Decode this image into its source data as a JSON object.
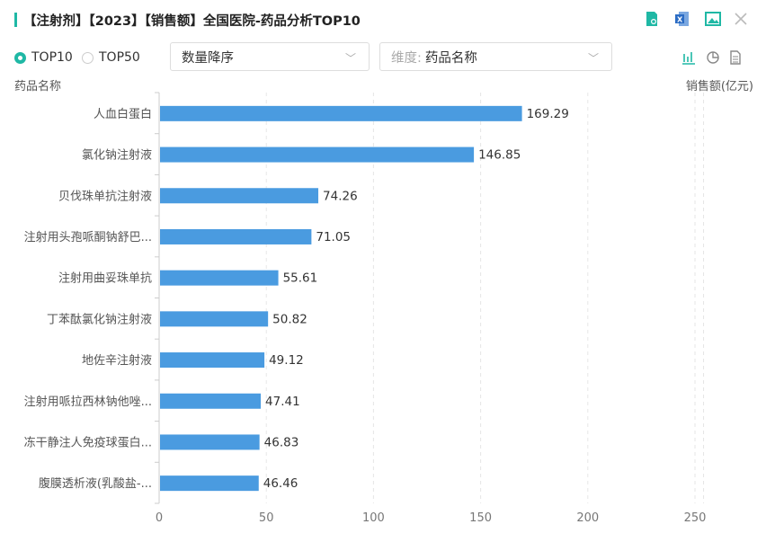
{
  "header": {
    "title": "【注射剂】【2023】【销售额】全国医院-药品分析TOP10",
    "icons": [
      "report-search-icon",
      "excel-export-icon",
      "image-export-icon",
      "close-icon"
    ]
  },
  "controls": {
    "top10": "TOP10",
    "top50": "TOP50",
    "sort": "数量降序",
    "dimension_prefix": "维度:",
    "dimension": "药品名称",
    "view_icons": [
      "bar-chart-icon",
      "pie-chart-icon",
      "table-icon"
    ]
  },
  "colors": {
    "accent": "#1fb8a5",
    "bar": "#4a9be0"
  },
  "chart_data": {
    "type": "bar",
    "orientation": "horizontal",
    "ylabel": "药品名称",
    "xlabel": "销售额(亿元)",
    "categories": [
      "人血白蛋白",
      "氯化钠注射液",
      "贝伐珠单抗注射液",
      "注射用头孢哌酮钠舒巴...",
      "注射用曲妥珠单抗",
      "丁苯酞氯化钠注射液",
      "地佐辛注射液",
      "注射用哌拉西林钠他唑...",
      "冻干静注人免疫球蛋白...",
      "腹膜透析液(乳酸盐-..."
    ],
    "values": [
      169.29,
      146.85,
      74.26,
      71.05,
      55.61,
      50.82,
      49.12,
      47.41,
      46.83,
      46.46
    ],
    "labels": [
      "169.29",
      "146.85",
      "74.26",
      "71.05",
      "55.61",
      "50.82",
      "49.12",
      "47.41",
      "46.83",
      "46.46"
    ],
    "xticks": [
      "0",
      "50",
      "100",
      "150",
      "200",
      "250"
    ],
    "xlim": [
      0,
      254
    ],
    "grid": true
  }
}
